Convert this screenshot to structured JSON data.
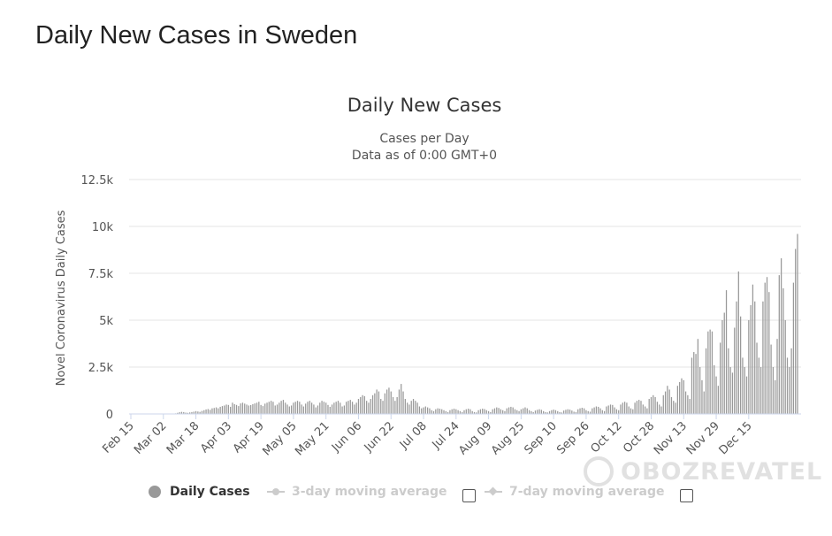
{
  "page": {
    "title": "Daily New Cases in Sweden"
  },
  "chart_data": {
    "type": "bar",
    "title": "Daily New Cases",
    "subtitle": [
      "Cases per Day",
      "Data as of 0:00 GMT+0"
    ],
    "xlabel": "",
    "ylabel": "Novel Coronavirus Daily Cases",
    "ylim": [
      0,
      12500
    ],
    "yticks": [
      0,
      2500,
      5000,
      7500,
      10000,
      12500
    ],
    "ytick_labels": [
      "0",
      "2.5k",
      "5k",
      "7.5k",
      "10k",
      "12.5k"
    ],
    "x_tick_labels": [
      "Feb 15",
      "Mar 02",
      "Mar 18",
      "Apr 03",
      "Apr 19",
      "May 05",
      "May 21",
      "Jun 06",
      "Jun 22",
      "Jul 08",
      "Jul 24",
      "Aug 09",
      "Aug 25",
      "Sep 10",
      "Sep 26",
      "Oct 12",
      "Oct 28",
      "Nov 13",
      "Nov 29",
      "Dec 15"
    ],
    "x_tick_interval_days": 16,
    "grid": true,
    "legend_position": "bottom",
    "series": [
      {
        "name": "Daily Cases",
        "color": "#999999",
        "start_date": "Feb 15",
        "values": [
          0,
          0,
          0,
          0,
          0,
          0,
          0,
          0,
          0,
          0,
          0,
          0,
          0,
          0,
          0,
          0,
          5,
          5,
          8,
          10,
          15,
          20,
          30,
          60,
          90,
          110,
          100,
          70,
          60,
          80,
          100,
          120,
          150,
          130,
          110,
          160,
          200,
          240,
          260,
          220,
          300,
          320,
          350,
          300,
          380,
          420,
          450,
          500,
          480,
          380,
          600,
          520,
          480,
          420,
          560,
          600,
          550,
          500,
          450,
          470,
          520,
          560,
          600,
          650,
          480,
          420,
          550,
          600,
          650,
          700,
          650,
          450,
          500,
          600,
          700,
          750,
          600,
          500,
          400,
          450,
          600,
          650,
          700,
          650,
          500,
          400,
          550,
          650,
          700,
          600,
          500,
          350,
          450,
          600,
          700,
          650,
          600,
          480,
          380,
          500,
          600,
          650,
          700,
          600,
          400,
          450,
          650,
          700,
          750,
          650,
          500,
          600,
          800,
          900,
          1000,
          950,
          700,
          600,
          800,
          1000,
          1100,
          1300,
          1200,
          800,
          700,
          1100,
          1300,
          1400,
          1200,
          900,
          700,
          900,
          1300,
          1600,
          1200,
          800,
          600,
          500,
          700,
          800,
          700,
          600,
          400,
          300,
          350,
          400,
          350,
          300,
          200,
          150,
          250,
          300,
          280,
          250,
          200,
          150,
          100,
          200,
          250,
          280,
          250,
          200,
          150,
          100,
          200,
          250,
          280,
          250,
          150,
          100,
          80,
          200,
          250,
          280,
          260,
          200,
          150,
          100,
          250,
          300,
          350,
          320,
          250,
          200,
          150,
          300,
          350,
          380,
          350,
          250,
          200,
          150,
          250,
          300,
          350,
          300,
          200,
          150,
          100,
          180,
          220,
          250,
          220,
          150,
          100,
          80,
          150,
          200,
          230,
          200,
          150,
          100,
          80,
          180,
          220,
          250,
          230,
          180,
          120,
          100,
          250,
          300,
          330,
          300,
          200,
          150,
          120,
          300,
          350,
          400,
          380,
          300,
          200,
          150,
          400,
          450,
          500,
          480,
          350,
          250,
          200,
          500,
          600,
          650,
          600,
          400,
          300,
          250,
          600,
          700,
          750,
          700,
          500,
          400,
          300,
          800,
          900,
          1000,
          900,
          650,
          500,
          400,
          1000,
          1200,
          1500,
          1300,
          900,
          700,
          600,
          1500,
          1700,
          1900,
          1800,
          1200,
          1000,
          800,
          3000,
          3300,
          3200,
          4000,
          2500,
          1800,
          1200,
          3500,
          4400,
          4500,
          4400,
          2600,
          2000,
          1500,
          3800,
          5000,
          5400,
          6600,
          3500,
          2500,
          2200,
          4600,
          6000,
          7600,
          5200,
          3000,
          2500,
          2000,
          5000,
          5800,
          6900,
          6000,
          3800,
          3000,
          2500,
          6000,
          7000,
          7300,
          6500,
          3700,
          2500,
          1800,
          4000,
          7400,
          8300,
          6700,
          5000,
          3000,
          2500,
          3500,
          7000,
          8800,
          9600
        ]
      },
      {
        "name": "3-day moving average",
        "color": "#cccccc",
        "enabled": false
      },
      {
        "name": "7-day moving average",
        "color": "#cccccc",
        "enabled": false
      }
    ]
  },
  "legend": {
    "daily_cases": "Daily Cases",
    "avg3": "3-day moving average",
    "avg7": "7-day moving average"
  },
  "watermark": {
    "text": "OBOZREVATEL"
  }
}
